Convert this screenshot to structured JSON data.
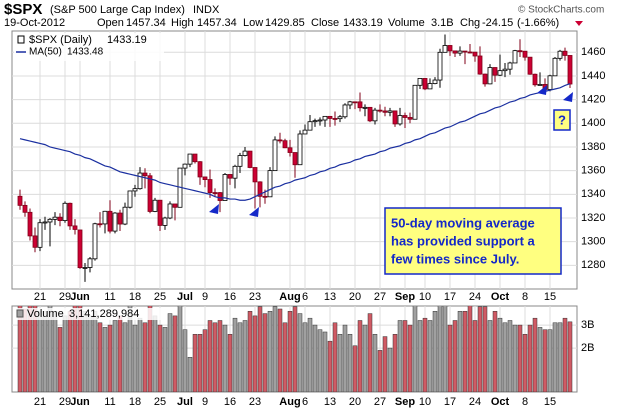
{
  "chart_data": {
    "type": "candlestick",
    "title": "$SPX",
    "subtitle": "(S&P 500 Large Cap Index)",
    "exchange": "INDX",
    "date": "19-Oct-2012",
    "source": "© StockCharts.com",
    "header": {
      "open": "Open",
      "high": "High",
      "low": "Low",
      "close": "Close",
      "volume": "Volume",
      "volume_value": "3.1B",
      "chg": "Chg",
      "chg_value": -24.15,
      "chg_pct": "(-1.66%)"
    },
    "name": "$SPX (Daily)",
    "up_color": "#ffffff",
    "down_color": "#cc0033",
    "categories": [
      null,
      null,
      null,
      null,
      "21",
      null,
      null,
      null,
      null,
      "29",
      null,
      null,
      "Jun",
      null,
      null,
      null,
      null,
      null,
      "11",
      null,
      null,
      null,
      null,
      "18",
      null,
      null,
      null,
      null,
      "25",
      null,
      null,
      null,
      null,
      "Jul",
      null,
      null,
      null,
      "9",
      null,
      null,
      null,
      null,
      "16",
      null,
      null,
      null,
      null,
      "23",
      null,
      null,
      null,
      null,
      null,
      null,
      "Aug",
      null,
      null,
      "6",
      null,
      null,
      null,
      null,
      "13",
      null,
      null,
      null,
      null,
      "20",
      null,
      null,
      null,
      null,
      "27",
      null,
      null,
      null,
      null,
      "Sep",
      null,
      null,
      null,
      "10",
      null,
      null,
      null,
      null,
      "17",
      null,
      null,
      null,
      null,
      "24",
      null,
      null,
      null,
      null,
      "Oct",
      null,
      null,
      null,
      null,
      "8",
      null,
      null,
      null,
      null,
      "15",
      null,
      null,
      null,
      null
    ],
    "open": [
      1338.35,
      1330.66,
      1324.8,
      1304.86,
      1295.22,
      1315.99,
      1316.63,
      1318.86,
      1320.68,
      1317.82,
      1332.42,
      1313.32,
      1309.87,
      1278.04,
      1278.18,
      1285.5,
      1315.13,
      1314.99,
      1325.66,
      1308.93,
      1324.18,
      1314.88,
      1329.1,
      1342.84,
      1344.78,
      1357.98,
      1355.69,
      1325.51,
      1335.02,
      1313.72,
      1319.99,
      1331.85,
      1329.04,
      1362.16,
      1365.51,
      1374.02,
      1367.58,
      1354.68,
      1352.46,
      1341.47,
      1341.45,
      1334.76,
      1356.78,
      1353.64,
      1363.67,
      1372.78,
      1376.51,
      1362.66,
      1350.52,
      1338.31,
      1337.89,
      1360.02,
      1385.97,
      1385.3,
      1379.32,
      1375.32,
      1365.0,
      1390.99,
      1394.23,
      1401.35,
      1402.22,
      1402.8,
      1405.87,
      1404.11,
      1403.93,
      1405.53,
      1415.51,
      1418.16,
      1418.13,
      1413.17,
      1413.49,
      1402.08,
      1411.13,
      1410.44,
      1409.3,
      1410.49,
      1399.48,
      1406.58,
      1404.94,
      1403.44,
      1432.12,
      1437.92,
      1429.08,
      1433.56,
      1436.56,
      1459.99,
      1465.77,
      1461.19,
      1459.32,
      1461.05,
      1460.26,
      1460.15,
      1456.89,
      1441.59,
      1433.32,
      1447.15,
      1440.67,
      1444.49,
      1445.75,
      1450.99,
      1461.4,
      1460.93,
      1455.88,
      1441.48,
      1432.56,
      1432.84,
      1428.59,
      1440.13,
      1454.92,
      1460.91,
      1457.34
    ],
    "high": [
      1344,
      1334,
      1328,
      1312,
      1319,
      1321,
      1320,
      1325,
      1324,
      1334,
      1333,
      1319,
      1310,
      1282,
      1287,
      1316,
      1325,
      1326,
      1335,
      1325,
      1327,
      1333,
      1343,
      1348,
      1363,
      1362,
      1358,
      1337,
      1335,
      1321,
      1334,
      1331,
      1362,
      1366,
      1374,
      1373,
      1368,
      1355,
      1361,
      1345,
      1342,
      1358,
      1357,
      1365,
      1375,
      1380,
      1376,
      1362,
      1351,
      1344,
      1363,
      1389,
      1392,
      1387,
      1386,
      1375,
      1394,
      1399,
      1407,
      1404,
      1405,
      1406,
      1406,
      1410,
      1407,
      1417,
      1419,
      1418,
      1426,
      1416,
      1413,
      1413,
      1416,
      1414,
      1413,
      1410,
      1413,
      1409,
      1409,
      1432,
      1438,
      1438,
      1438,
      1439,
      1463,
      1475,
      1466,
      1461,
      1465,
      1461,
      1467,
      1460,
      1465,
      1442,
      1450,
      1447,
      1458,
      1451,
      1452,
      1462,
      1471,
      1461,
      1456,
      1442,
      1443,
      1438,
      1441,
      1456,
      1462,
      1464,
      1457.34
    ],
    "low": [
      1327,
      1321,
      1301,
      1291,
      1292,
      1310,
      1296,
      1314,
      1313,
      1316,
      1310,
      1306,
      1277,
      1266,
      1274,
      1284,
      1312,
      1307,
      1307,
      1307,
      1309,
      1314,
      1328,
      1338,
      1344,
      1345,
      1324,
      1325,
      1309,
      1310,
      1319,
      1318,
      1329,
      1356,
      1363,
      1366,
      1348,
      1346,
      1337,
      1338,
      1325,
      1335,
      1348,
      1345,
      1358,
      1372,
      1362,
      1328,
      1329,
      1332,
      1338,
      1360,
      1383,
      1379,
      1372,
      1354,
      1365,
      1391,
      1394,
      1397,
      1398,
      1397,
      1397,
      1398,
      1401,
      1404,
      1412,
      1412,
      1410,
      1406,
      1401,
      1399,
      1409,
      1406,
      1406,
      1397,
      1398,
      1396,
      1400,
      1404,
      1429,
      1428,
      1429,
      1433,
      1430,
      1460,
      1457,
      1456,
      1457,
      1450,
      1459,
      1452,
      1441,
      1431,
      1433,
      1435,
      1440,
      1439,
      1441,
      1451,
      1456,
      1453,
      1441,
      1431,
      1432,
      1425,
      1427,
      1440,
      1453,
      1453,
      1429.85
    ],
    "close": [
      1330.66,
      1324.8,
      1304.86,
      1295.22,
      1315.99,
      1316.63,
      1318.86,
      1320.68,
      1317.82,
      1332.42,
      1313.32,
      1310.33,
      1278.04,
      1278.18,
      1285.5,
      1315.13,
      1314.99,
      1325.66,
      1308.93,
      1324.18,
      1314.88,
      1329.1,
      1342.84,
      1344.78,
      1357.98,
      1355.69,
      1325.51,
      1335.02,
      1313.72,
      1319.99,
      1331.85,
      1329.04,
      1362.16,
      1365.51,
      1374.02,
      1367.58,
      1354.68,
      1352.46,
      1341.47,
      1341.45,
      1334.76,
      1356.78,
      1353.64,
      1363.67,
      1372.78,
      1376.51,
      1362.66,
      1350.52,
      1338.31,
      1337.89,
      1360.02,
      1385.97,
      1385.3,
      1379.32,
      1375.32,
      1365.0,
      1390.99,
      1394.23,
      1401.35,
      1402.22,
      1402.8,
      1405.87,
      1404.11,
      1403.93,
      1405.53,
      1415.51,
      1418.16,
      1418.13,
      1413.17,
      1413.49,
      1402.08,
      1411.13,
      1410.44,
      1409.3,
      1410.49,
      1399.48,
      1406.58,
      1404.94,
      1403.44,
      1432.12,
      1437.92,
      1429.08,
      1433.56,
      1436.56,
      1459.99,
      1465.77,
      1461.19,
      1459.32,
      1461.05,
      1460.26,
      1460.15,
      1456.89,
      1441.59,
      1433.32,
      1447.15,
      1440.67,
      1444.49,
      1445.75,
      1450.99,
      1461.4,
      1460.93,
      1455.88,
      1441.48,
      1432.56,
      1432.84,
      1428.59,
      1440.13,
      1454.92,
      1460.91,
      1457.34,
      1433.19
    ],
    "ma": {
      "name": "MA(50)",
      "color": "#1a2fa0",
      "values": [
        1387,
        1386,
        1385,
        1384,
        1383,
        1382,
        1380,
        1379,
        1378,
        1377,
        1376,
        1374,
        1373,
        1371,
        1370,
        1368,
        1366,
        1364,
        1363,
        1361,
        1359,
        1358,
        1357,
        1356,
        1355,
        1354,
        1353,
        1352,
        1350,
        1349,
        1348,
        1347,
        1346,
        1345,
        1344,
        1343,
        1342,
        1341,
        1340,
        1338,
        1337,
        1337,
        1336,
        1336,
        1335,
        1335,
        1336,
        1338,
        1340,
        1342,
        1344,
        1346,
        1347,
        1349,
        1350,
        1352,
        1353,
        1354,
        1356,
        1357,
        1359,
        1360,
        1362,
        1363,
        1365,
        1366,
        1367,
        1369,
        1370,
        1372,
        1373,
        1374,
        1376,
        1377,
        1379,
        1380,
        1381,
        1383,
        1384,
        1386,
        1387,
        1389,
        1391,
        1392,
        1394,
        1396,
        1397,
        1399,
        1401,
        1402,
        1404,
        1406,
        1408,
        1409,
        1411,
        1413,
        1414,
        1416,
        1418,
        1419,
        1421,
        1422,
        1424,
        1425,
        1426,
        1427,
        1428,
        1429,
        1430,
        1432,
        1433.48
      ]
    },
    "ylim": [
      1260,
      1478
    ],
    "yticks": [
      1280,
      1300,
      1320,
      1340,
      1360,
      1380,
      1400,
      1420,
      1440,
      1460
    ],
    "grid": true,
    "volume": {
      "name": "Volume",
      "last_label": "3,141,289,984",
      "up_color": "#a0a0a0",
      "down_color": "#d05a64",
      "values": [
        3900000000.0,
        3700000000.0,
        3900000000.0,
        4100000000.0,
        3600000000.0,
        3600000000.0,
        3900000000.0,
        3600000000.0,
        2900000000.0,
        3400000000.0,
        3600000000.0,
        4000000000.0,
        3900000000.0,
        3600000000.0,
        3400000000.0,
        3600000000.0,
        3100000000.0,
        2900000000.0,
        3000000000.0,
        3200000000.0,
        3400000000.0,
        3100000000.0,
        4000000000.0,
        3000000000.0,
        3300000000.0,
        3100000000.0,
        4000000000.0,
        3400000000.0,
        3000000000.0,
        2900000000.0,
        3500000000.0,
        3400000000.0,
        4000000000.0,
        2800000000.0,
        1600000000.0,
        2600000000.0,
        2600000000.0,
        2800000000.0,
        3200000000.0,
        3100000000.0,
        3200000000.0,
        3000000000.0,
        2600000000.0,
        3300000000.0,
        3100000000.0,
        3200000000.0,
        3600000000.0,
        3400000000.0,
        3800000000.0,
        3500000000.0,
        3600000000.0,
        3800000000.0,
        3700000000.0,
        3100000000.0,
        3600000000.0,
        3800000000.0,
        3500000000.0,
        3100000000.0,
        3300000000.0,
        3000000000.0,
        2800000000.0,
        2700000000.0,
        2300000000.0,
        3100000000.0,
        2600000000.0,
        3000000000.0,
        2600000000.0,
        2100000000.0,
        3200000000.0,
        3000000000.0,
        3500000000.0,
        2600000000.0,
        1900000000.0,
        2500000000.0,
        2000000000.0,
        2600000000.0,
        3200000000.0,
        3200000000.0,
        3000000000.0,
        3900000000.0,
        3200000000.0,
        3300000000.0,
        3200000000.0,
        3600000000.0,
        4100000000.0,
        4000000000.0,
        3000000000.0,
        3200000000.0,
        3600000000.0,
        3600000000.0,
        4300000000.0,
        3200000000.0,
        3800000000.0,
        3800000000.0,
        3200000000.0,
        3600000000.0,
        3300000000.0,
        3100000000.0,
        3200000000.0,
        3000000000.0,
        3000000000.0,
        2600000000.0,
        3000000000.0,
        3300000000.0,
        2900000000.0,
        2800000000.0,
        2800000000.0,
        3100000000.0,
        3100000000.0,
        3300000000.0,
        3141289984
      ],
      "ylim": [
        90000000.0,
        3830000000.0
      ],
      "yticks": [
        {
          "value": 2000000000.0,
          "label": "2B"
        },
        {
          "value": 3000000000.0,
          "label": "3B"
        }
      ]
    },
    "annotation": [
      "50-day moving average",
      "has provided support a",
      "few times since July."
    ],
    "question": "?"
  }
}
